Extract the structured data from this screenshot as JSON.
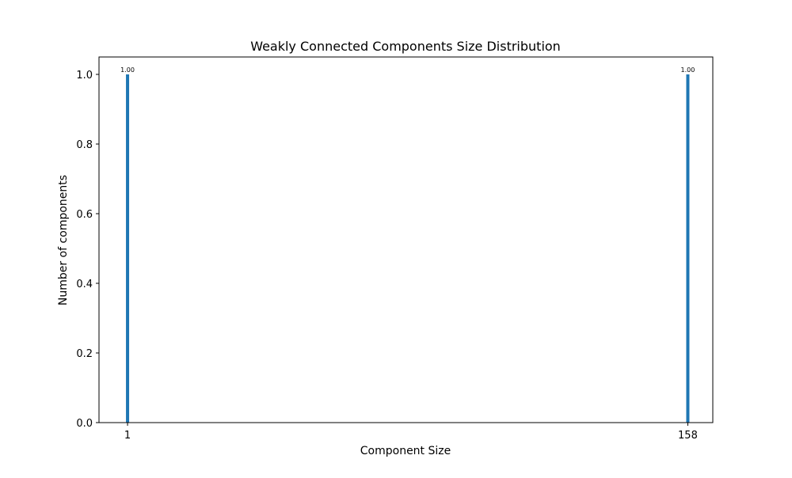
{
  "chart_data": {
    "type": "bar",
    "title": "Weakly Connected Components Size Distribution",
    "xlabel": "Component Size",
    "ylabel": "Number of components",
    "x": [
      1,
      158
    ],
    "values": [
      1.0,
      1.0
    ],
    "data_labels": [
      "1.00",
      "1.00"
    ],
    "xticks": [
      "1",
      "158"
    ],
    "yticks": [
      "0.0",
      "0.2",
      "0.4",
      "0.6",
      "0.8",
      "1.0"
    ],
    "xlim": [
      -7,
      165
    ],
    "ylim": [
      0,
      1.05
    ],
    "grid": false,
    "bar_color": "#1f77b4"
  }
}
